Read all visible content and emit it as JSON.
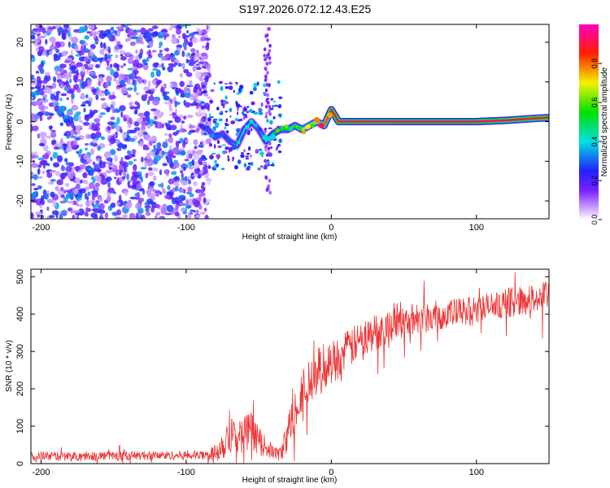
{
  "title": "S197.2026.072.12.43.E25",
  "chart_data": [
    {
      "type": "heatmap",
      "title": "S197.2026.072.12.43.E25",
      "xlabel": "Height of straight line (km)",
      "ylabel": "Frequency (Hz)",
      "xlim": [
        -207,
        150
      ],
      "ylim": [
        -24.5,
        24.5
      ],
      "xticks": [
        -200,
        -100,
        0,
        100
      ],
      "yticks": [
        -20,
        -10,
        0,
        10,
        20
      ],
      "colorbar": {
        "label": "Normalized spectral amplitude",
        "range": [
          0,
          1
        ],
        "ticks": [
          0.0,
          0.2,
          0.4,
          0.6,
          0.8
        ],
        "colormap": "rainbow: white-violet-blue-cyan-green-yellow-red-magenta"
      },
      "noise_region": {
        "x_range": [
          -207,
          -88
        ],
        "freq_range": [
          -24.5,
          24.5
        ],
        "amplitude": "0.05-0.35"
      },
      "ridge": {
        "x": [
          -90,
          -85,
          -80,
          -75,
          -70,
          -65,
          -60,
          -55,
          -50,
          -45,
          -40,
          -35,
          -30,
          -25,
          -20,
          -15,
          -10,
          -5,
          0,
          5,
          10,
          20,
          40,
          60,
          80,
          100,
          120,
          140,
          150
        ],
        "freq": [
          -1,
          -2,
          -4,
          -3,
          -5,
          -6,
          -2,
          0,
          -2,
          -5,
          -3,
          -2,
          -2,
          -1,
          -2,
          -1,
          0,
          -1,
          3,
          0,
          0,
          0,
          0,
          0,
          0,
          0,
          0.3,
          0.8,
          1
        ],
        "amp": [
          0.25,
          0.3,
          0.3,
          0.3,
          0.3,
          0.35,
          0.4,
          0.45,
          0.3,
          0.4,
          0.5,
          0.55,
          0.55,
          0.6,
          0.65,
          0.7,
          0.75,
          0.8,
          0.85,
          0.9,
          0.9,
          0.9,
          0.92,
          0.95,
          0.95,
          0.95,
          0.9,
          0.85,
          0.85
        ]
      }
    },
    {
      "type": "line",
      "xlabel": "Height of straight line (km)",
      "ylabel": "SNR (10 * v/v)",
      "xlim": [
        -207,
        150
      ],
      "ylim": [
        0,
        520
      ],
      "xticks": [
        -200,
        -100,
        0,
        100
      ],
      "yticks": [
        0,
        100,
        200,
        300,
        400,
        500
      ],
      "color": "#ee3333",
      "series": [
        {
          "name": "SNR",
          "x": [
            -207,
            -180,
            -150,
            -120,
            -90,
            -82,
            -75,
            -70,
            -65,
            -60,
            -55,
            -50,
            -45,
            -40,
            -35,
            -30,
            -25,
            -20,
            -15,
            -10,
            -5,
            0,
            10,
            20,
            30,
            40,
            60,
            80,
            100,
            120,
            140,
            150
          ],
          "y": [
            20,
            20,
            21,
            22,
            22,
            25,
            50,
            90,
            70,
            80,
            90,
            60,
            45,
            30,
            25,
            80,
            150,
            200,
            210,
            240,
            260,
            270,
            300,
            330,
            350,
            370,
            390,
            400,
            410,
            430,
            440,
            450
          ],
          "noise": [
            12,
            12,
            12,
            12,
            12,
            18,
            45,
            60,
            45,
            50,
            50,
            40,
            25,
            20,
            20,
            50,
            60,
            60,
            70,
            70,
            65,
            60,
            55,
            50,
            50,
            45,
            45,
            40,
            40,
            40,
            40,
            40
          ]
        }
      ]
    }
  ]
}
